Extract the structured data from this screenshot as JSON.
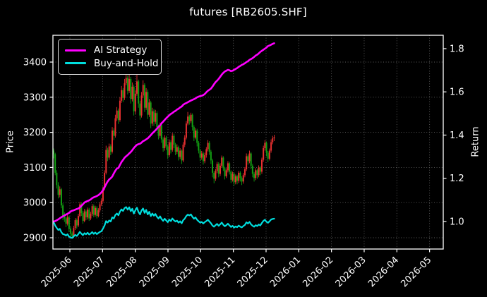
{
  "window": {
    "title": "futures [RB2605.SHF]"
  },
  "colors": {
    "background": "#000000",
    "text": "#ffffff",
    "grid": "#bbbbbb",
    "spine": "#ffffff",
    "legend_border": "#dcdcdc",
    "ai_strategy": "#ff00ff",
    "buy_and_hold": "#00dede",
    "candle_up": "#e83030",
    "candle_down": "#12a012"
  },
  "legend": {
    "items": [
      {
        "label": "AI Strategy",
        "color_key": "ai_strategy"
      },
      {
        "label": "Buy-and-Hold",
        "color_key": "buy_and_hold"
      }
    ]
  },
  "axes": {
    "left": {
      "label": "Price",
      "ticks": [
        2900,
        3000,
        3100,
        3200,
        3300,
        3400
      ],
      "range": [
        2868,
        3476
      ]
    },
    "right": {
      "label": "Return",
      "ticks": [
        1.0,
        1.2,
        1.4,
        1.6,
        1.8
      ],
      "tick_labels": [
        "1.0",
        "1.2",
        "1.4",
        "1.6",
        "1.8"
      ],
      "range": [
        0.873,
        1.862
      ]
    },
    "x": {
      "tick_labels": [
        "2025-06",
        "2025-07",
        "2025-08",
        "2025-09",
        "2025-10",
        "2025-11",
        "2025-12",
        "2026-01",
        "2026-02",
        "2026-03",
        "2026-04",
        "2026-05"
      ]
    }
  },
  "chart_data": {
    "type": "candlestick+line",
    "title": "futures [RB2605.SHF]",
    "x_description": "daily trading bars, day 0 = mid-May 2025, data ends early Dec 2025; x axis extends (empty) to 2026-05",
    "price_axis": "left (Price 2900-3400)",
    "return_axis": "right (Return 1.0-1.8)",
    "grid": true,
    "legend_position": "upper-left",
    "candles_ohlc": [
      [
        3148,
        3154,
        3126,
        3138
      ],
      [
        3138,
        3142,
        3078,
        3085
      ],
      [
        3085,
        3092,
        3040,
        3050
      ],
      [
        3050,
        3058,
        3012,
        3022
      ],
      [
        3022,
        3046,
        3015,
        3038
      ],
      [
        3038,
        3042,
        2984,
        2992
      ],
      [
        2992,
        2998,
        2950,
        2962
      ],
      [
        2962,
        2972,
        2945,
        2955
      ],
      [
        2955,
        2960,
        2930,
        2940
      ],
      [
        2940,
        2965,
        2935,
        2958
      ],
      [
        2958,
        2962,
        2916,
        2925
      ],
      [
        2925,
        2932,
        2902,
        2912
      ],
      [
        2912,
        2918,
        2898,
        2905
      ],
      [
        2905,
        2934,
        2900,
        2928
      ],
      [
        2928,
        2956,
        2922,
        2950
      ],
      [
        2950,
        2955,
        2926,
        2935
      ],
      [
        2935,
        2968,
        2930,
        2962
      ],
      [
        2962,
        3002,
        2958,
        2995
      ],
      [
        2995,
        3000,
        2962,
        2970
      ],
      [
        2970,
        2976,
        2940,
        2948
      ],
      [
        2948,
        2982,
        2944,
        2975
      ],
      [
        2975,
        2980,
        2950,
        2958
      ],
      [
        2958,
        2986,
        2952,
        2980
      ],
      [
        2980,
        2985,
        2948,
        2955
      ],
      [
        2955,
        2974,
        2950,
        2968
      ],
      [
        2968,
        2996,
        2962,
        2990
      ],
      [
        2990,
        2995,
        2958,
        2965
      ],
      [
        2965,
        2991,
        2960,
        2985
      ],
      [
        2985,
        2990,
        2955,
        2962
      ],
      [
        2962,
        2984,
        2958,
        2978
      ],
      [
        2978,
        3001,
        2972,
        2995
      ],
      [
        2995,
        3012,
        2990,
        3005
      ],
      [
        3005,
        3046,
        3000,
        3040
      ],
      [
        3040,
        3092,
        3035,
        3085
      ],
      [
        3085,
        3162,
        3080,
        3150
      ],
      [
        3150,
        3156,
        3118,
        3128
      ],
      [
        3128,
        3168,
        3122,
        3160
      ],
      [
        3160,
        3166,
        3135,
        3145
      ],
      [
        3145,
        3215,
        3140,
        3205
      ],
      [
        3205,
        3212,
        3178,
        3190
      ],
      [
        3190,
        3250,
        3185,
        3240
      ],
      [
        3240,
        3272,
        3232,
        3262
      ],
      [
        3262,
        3268,
        3224,
        3235
      ],
      [
        3235,
        3300,
        3230,
        3290
      ],
      [
        3290,
        3332,
        3284,
        3320
      ],
      [
        3320,
        3326,
        3286,
        3298
      ],
      [
        3298,
        3352,
        3292,
        3340
      ],
      [
        3340,
        3370,
        3334,
        3355
      ],
      [
        3355,
        3362,
        3308,
        3318
      ],
      [
        3318,
        3368,
        3312,
        3352
      ],
      [
        3352,
        3358,
        3282,
        3295
      ],
      [
        3295,
        3342,
        3288,
        3330
      ],
      [
        3330,
        3336,
        3248,
        3260
      ],
      [
        3260,
        3320,
        3252,
        3310
      ],
      [
        3310,
        3365,
        3304,
        3345
      ],
      [
        3345,
        3350,
        3270,
        3282
      ],
      [
        3282,
        3290,
        3236,
        3248
      ],
      [
        3248,
        3315,
        3242,
        3305
      ],
      [
        3305,
        3348,
        3298,
        3335
      ],
      [
        3335,
        3340,
        3258,
        3270
      ],
      [
        3270,
        3326,
        3264,
        3315
      ],
      [
        3315,
        3322,
        3238,
        3250
      ],
      [
        3250,
        3295,
        3244,
        3285
      ],
      [
        3285,
        3290,
        3212,
        3225
      ],
      [
        3225,
        3270,
        3218,
        3260
      ],
      [
        3260,
        3266,
        3218,
        3230
      ],
      [
        3230,
        3264,
        3224,
        3255
      ],
      [
        3255,
        3260,
        3205,
        3215
      ],
      [
        3215,
        3222,
        3180,
        3190
      ],
      [
        3190,
        3228,
        3184,
        3220
      ],
      [
        3220,
        3225,
        3170,
        3180
      ],
      [
        3180,
        3186,
        3145,
        3155
      ],
      [
        3155,
        3192,
        3148,
        3185
      ],
      [
        3185,
        3190,
        3150,
        3160
      ],
      [
        3160,
        3165,
        3125,
        3135
      ],
      [
        3135,
        3180,
        3130,
        3172
      ],
      [
        3172,
        3178,
        3140,
        3150
      ],
      [
        3150,
        3198,
        3145,
        3190
      ],
      [
        3190,
        3196,
        3155,
        3165
      ],
      [
        3165,
        3170,
        3135,
        3145
      ],
      [
        3145,
        3166,
        3138,
        3158
      ],
      [
        3158,
        3162,
        3120,
        3130
      ],
      [
        3130,
        3155,
        3124,
        3148
      ],
      [
        3148,
        3152,
        3110,
        3120
      ],
      [
        3120,
        3172,
        3115,
        3165
      ],
      [
        3165,
        3192,
        3158,
        3185
      ],
      [
        3185,
        3232,
        3180,
        3225
      ],
      [
        3225,
        3258,
        3220,
        3245
      ],
      [
        3245,
        3250,
        3222,
        3232
      ],
      [
        3232,
        3256,
        3226,
        3250
      ],
      [
        3250,
        3254,
        3205,
        3215
      ],
      [
        3215,
        3220,
        3175,
        3185
      ],
      [
        3185,
        3212,
        3180,
        3205
      ],
      [
        3205,
        3210,
        3160,
        3170
      ],
      [
        3170,
        3175,
        3140,
        3148
      ],
      [
        3148,
        3152,
        3118,
        3128
      ],
      [
        3128,
        3147,
        3122,
        3140
      ],
      [
        3140,
        3145,
        3108,
        3118
      ],
      [
        3118,
        3142,
        3112,
        3135
      ],
      [
        3135,
        3158,
        3128,
        3152
      ],
      [
        3152,
        3178,
        3146,
        3170
      ],
      [
        3170,
        3175,
        3136,
        3145
      ],
      [
        3145,
        3150,
        3110,
        3120
      ],
      [
        3120,
        3125,
        3072,
        3085
      ],
      [
        3085,
        3090,
        3055,
        3068
      ],
      [
        3068,
        3096,
        3062,
        3090
      ],
      [
        3090,
        3116,
        3084,
        3110
      ],
      [
        3110,
        3115,
        3072,
        3082
      ],
      [
        3082,
        3112,
        3076,
        3105
      ],
      [
        3105,
        3134,
        3100,
        3128
      ],
      [
        3128,
        3132,
        3090,
        3098
      ],
      [
        3098,
        3102,
        3066,
        3075
      ],
      [
        3075,
        3098,
        3070,
        3092
      ],
      [
        3092,
        3118,
        3086,
        3112
      ],
      [
        3112,
        3116,
        3080,
        3088
      ],
      [
        3088,
        3092,
        3056,
        3065
      ],
      [
        3065,
        3088,
        3060,
        3082
      ],
      [
        3082,
        3086,
        3048,
        3058
      ],
      [
        3058,
        3080,
        3052,
        3075
      ],
      [
        3075,
        3079,
        3052,
        3062
      ],
      [
        3062,
        3090,
        3056,
        3085
      ],
      [
        3085,
        3089,
        3060,
        3070
      ],
      [
        3070,
        3075,
        3050,
        3060
      ],
      [
        3060,
        3084,
        3054,
        3078
      ],
      [
        3078,
        3101,
        3072,
        3095
      ],
      [
        3095,
        3140,
        3090,
        3132
      ],
      [
        3132,
        3137,
        3108,
        3118
      ],
      [
        3118,
        3148,
        3112,
        3140
      ],
      [
        3140,
        3144,
        3095,
        3105
      ],
      [
        3105,
        3110,
        3072,
        3082
      ],
      [
        3082,
        3087,
        3060,
        3070
      ],
      [
        3070,
        3098,
        3064,
        3092
      ],
      [
        3092,
        3096,
        3068,
        3078
      ],
      [
        3078,
        3106,
        3072,
        3100
      ],
      [
        3100,
        3104,
        3078,
        3088
      ],
      [
        3088,
        3128,
        3082,
        3122
      ],
      [
        3122,
        3162,
        3116,
        3155
      ],
      [
        3155,
        3178,
        3148,
        3170
      ],
      [
        3170,
        3174,
        3132,
        3142
      ],
      [
        3142,
        3147,
        3115,
        3125
      ],
      [
        3125,
        3154,
        3120,
        3148
      ],
      [
        3148,
        3180,
        3142,
        3172
      ],
      [
        3172,
        3190,
        3166,
        3183
      ],
      [
        3183,
        3193,
        3175,
        3186
      ]
    ],
    "series": [
      {
        "name": "AI Strategy",
        "axis": "right",
        "color_key": "ai_strategy",
        "values": [
          1.0,
          1.002,
          1.006,
          1.01,
          1.015,
          1.02,
          1.024,
          1.028,
          1.032,
          1.036,
          1.04,
          1.046,
          1.05,
          1.052,
          1.055,
          1.058,
          1.06,
          1.065,
          1.072,
          1.08,
          1.088,
          1.092,
          1.095,
          1.098,
          1.102,
          1.108,
          1.112,
          1.115,
          1.118,
          1.122,
          1.128,
          1.135,
          1.145,
          1.158,
          1.172,
          1.185,
          1.195,
          1.2,
          1.208,
          1.222,
          1.235,
          1.245,
          1.248,
          1.262,
          1.275,
          1.285,
          1.295,
          1.302,
          1.308,
          1.315,
          1.322,
          1.33,
          1.34,
          1.348,
          1.355,
          1.358,
          1.36,
          1.365,
          1.372,
          1.375,
          1.38,
          1.385,
          1.392,
          1.4,
          1.408,
          1.415,
          1.422,
          1.43,
          1.438,
          1.445,
          1.455,
          1.462,
          1.47,
          1.478,
          1.485,
          1.492,
          1.498,
          1.502,
          1.508,
          1.512,
          1.518,
          1.522,
          1.528,
          1.532,
          1.54,
          1.545,
          1.548,
          1.552,
          1.556,
          1.56,
          1.563,
          1.566,
          1.57,
          1.575,
          1.578,
          1.58,
          1.582,
          1.585,
          1.59,
          1.598,
          1.605,
          1.61,
          1.615,
          1.625,
          1.635,
          1.645,
          1.652,
          1.66,
          1.67,
          1.68,
          1.688,
          1.694,
          1.698,
          1.702,
          1.7,
          1.696,
          1.698,
          1.702,
          1.706,
          1.71,
          1.716,
          1.72,
          1.725,
          1.728,
          1.732,
          1.738,
          1.742,
          1.748,
          1.752,
          1.756,
          1.762,
          1.768,
          1.772,
          1.778,
          1.785,
          1.79,
          1.795,
          1.8,
          1.805,
          1.812,
          1.815,
          1.818,
          1.822,
          1.825
        ]
      },
      {
        "name": "Buy-and-Hold",
        "axis": "right",
        "color_key": "buy_and_hold",
        "values": [
          0.998,
          0.981,
          0.97,
          0.961,
          0.966,
          0.951,
          0.942,
          0.94,
          0.935,
          0.941,
          0.93,
          0.926,
          0.924,
          0.931,
          0.938,
          0.933,
          0.942,
          0.952,
          0.944,
          0.937,
          0.946,
          0.941,
          0.948,
          0.94,
          0.944,
          0.951,
          0.943,
          0.949,
          0.942,
          0.947,
          0.952,
          0.955,
          0.967,
          0.981,
          1.002,
          0.995,
          1.005,
          1.0,
          1.019,
          1.014,
          1.03,
          1.037,
          1.029,
          1.046,
          1.056,
          1.049,
          1.062,
          1.067,
          1.055,
          1.066,
          1.048,
          1.059,
          1.037,
          1.052,
          1.064,
          1.044,
          1.033,
          1.051,
          1.06,
          1.04,
          1.054,
          1.033,
          1.045,
          1.025,
          1.037,
          1.027,
          1.035,
          1.022,
          1.014,
          1.024,
          1.011,
          1.003,
          1.013,
          1.005,
          0.997,
          1.009,
          1.002,
          1.014,
          1.006,
          1.0,
          1.004,
          0.995,
          1.001,
          0.992,
          1.006,
          1.013,
          1.025,
          1.032,
          1.028,
          1.033,
          1.022,
          1.013,
          1.019,
          1.008,
          1.001,
          0.995,
          0.998,
          0.991,
          0.997,
          1.002,
          1.008,
          1.0,
          0.992,
          0.981,
          0.976,
          0.983,
          0.989,
          0.98,
          0.987,
          0.995,
          0.985,
          0.978,
          0.983,
          0.99,
          0.982,
          0.975,
          0.98,
          0.972,
          0.977,
          0.974,
          0.981,
          0.976,
          0.973,
          0.979,
          0.984,
          0.996,
          0.991,
          0.998,
          0.987,
          0.98,
          0.976,
          0.983,
          0.979,
          0.986,
          0.982,
          0.993,
          1.003,
          1.008,
          0.999,
          0.994,
          1.001,
          1.009,
          1.012,
          1.013
        ]
      }
    ]
  }
}
